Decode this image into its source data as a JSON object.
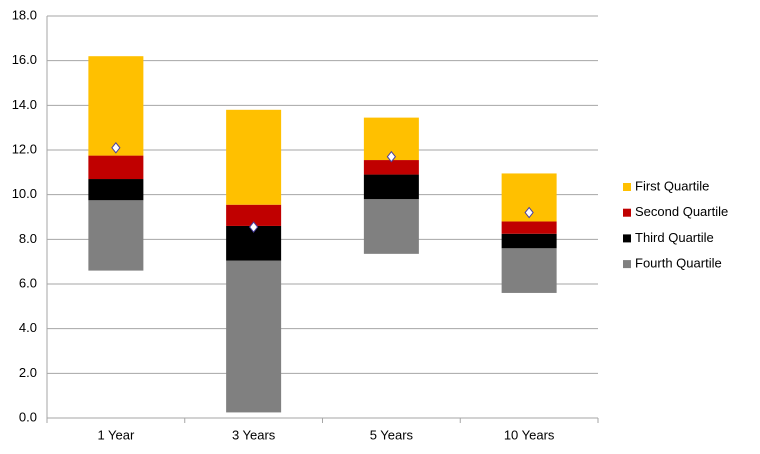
{
  "chart_data": {
    "type": "floating-stacked-bar",
    "categories": [
      "1 Year",
      "3 Years",
      "5 Years",
      "10 Years"
    ],
    "base": [
      6.6,
      0.25,
      7.35,
      5.6
    ],
    "series": [
      {
        "name": "First Quartile",
        "color": "#ffc000",
        "values": [
          4.45,
          4.25,
          1.9,
          2.15
        ]
      },
      {
        "name": "Second Quartile",
        "color": "#c00000",
        "values": [
          1.05,
          0.95,
          0.65,
          0.55
        ]
      },
      {
        "name": "Third Quartile",
        "color": "#000000",
        "values": [
          0.95,
          1.55,
          1.1,
          0.65
        ]
      },
      {
        "name": "Fourth Quartile",
        "color": "#808080",
        "values": [
          3.15,
          6.8,
          2.45,
          2.0
        ]
      }
    ],
    "markers": {
      "values": [
        12.1,
        8.55,
        11.7,
        9.2
      ]
    },
    "ylim": [
      0,
      18
    ],
    "yticks": [
      {
        "value": 0,
        "label": "0.0"
      },
      {
        "value": 2,
        "label": "2.0"
      },
      {
        "value": 4,
        "label": "4.0"
      },
      {
        "value": 6,
        "label": "6.0"
      },
      {
        "value": 8,
        "label": "8.0"
      },
      {
        "value": 10,
        "label": "10.0"
      },
      {
        "value": 12,
        "label": "12.0"
      },
      {
        "value": 14,
        "label": "14.0"
      },
      {
        "value": 16,
        "label": "16.0"
      },
      {
        "value": 18,
        "label": "18.0"
      }
    ],
    "grid": true
  }
}
